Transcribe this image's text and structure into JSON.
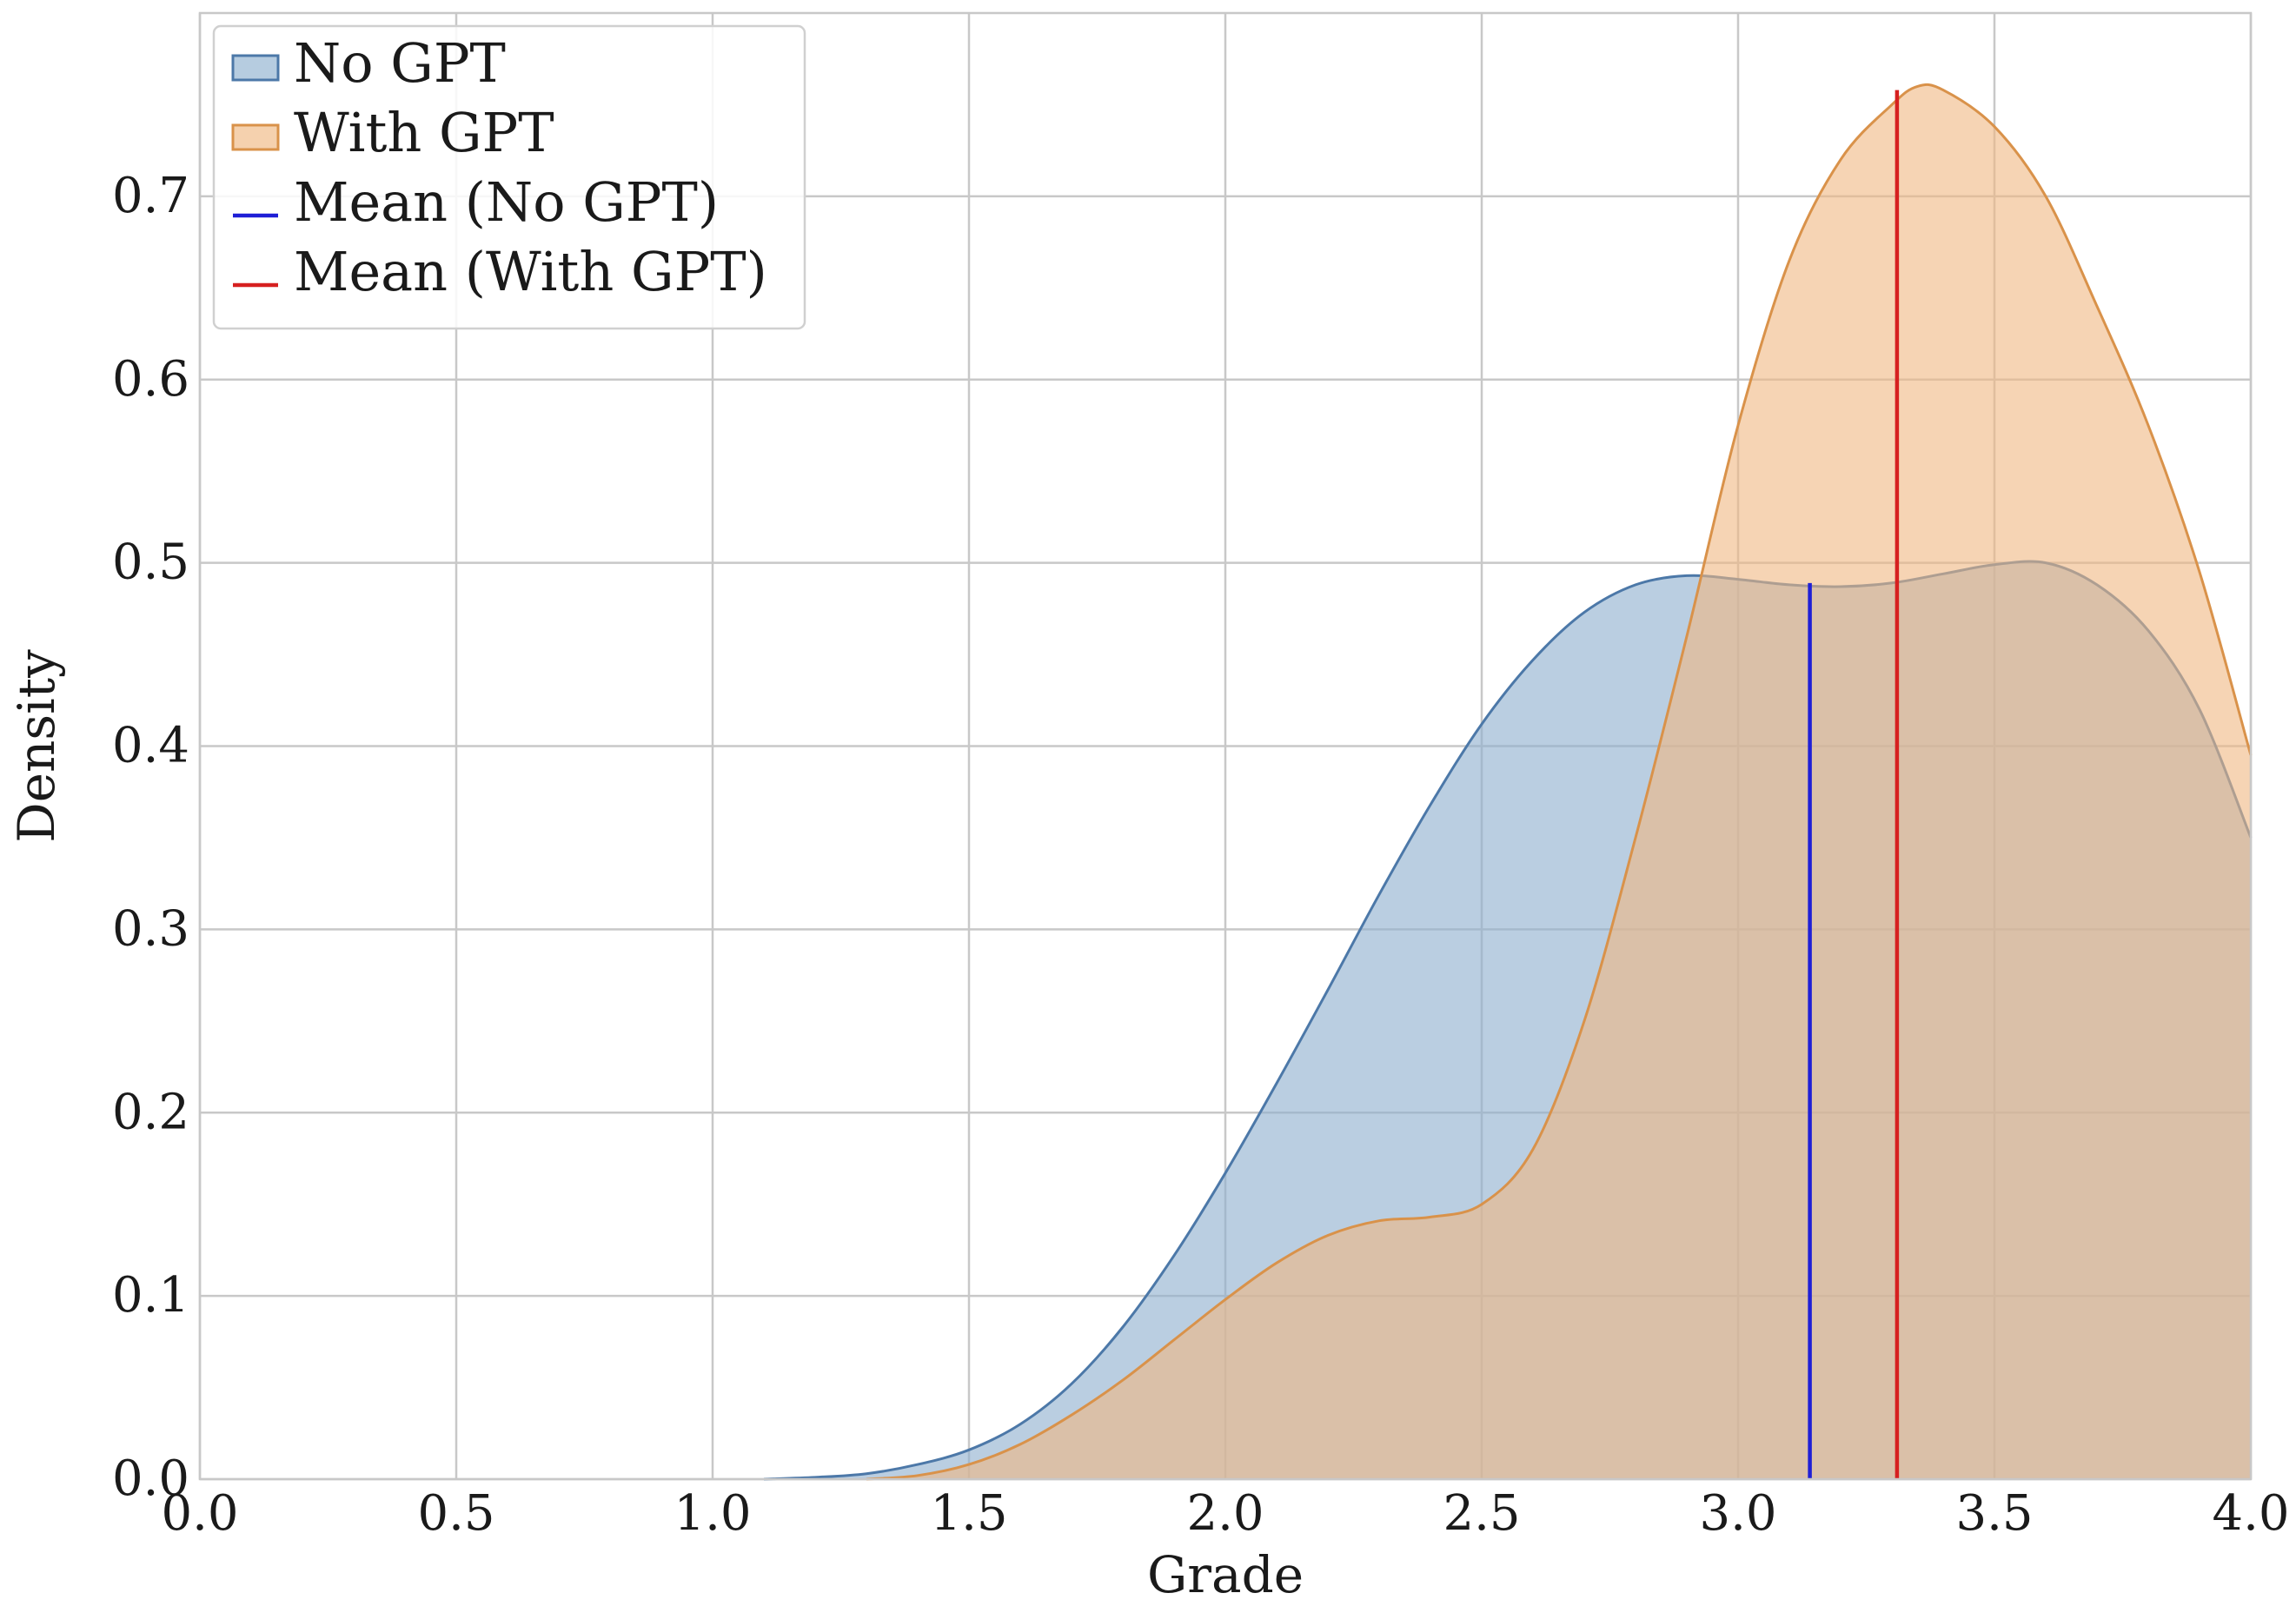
{
  "chart_data": {
    "type": "area",
    "title": "",
    "xlabel": "Grade",
    "ylabel": "Density",
    "xlim": [
      0.0,
      4.0
    ],
    "ylim": [
      0.0,
      0.8
    ],
    "xticks": [
      "0.0",
      "0.5",
      "1.0",
      "1.5",
      "2.0",
      "2.5",
      "3.0",
      "3.5",
      "4.0"
    ],
    "yticks": [
      "0.0",
      "0.1",
      "0.2",
      "0.3",
      "0.4",
      "0.5",
      "0.6",
      "0.7"
    ],
    "grid": true,
    "legend_position": "top-left",
    "series": [
      {
        "name": "No GPT",
        "kind": "density",
        "color": "#4c78a8",
        "fill": "#8fb0cf",
        "points": [
          [
            1.1,
            0.0
          ],
          [
            1.2,
            0.001
          ],
          [
            1.3,
            0.003
          ],
          [
            1.4,
            0.008
          ],
          [
            1.5,
            0.016
          ],
          [
            1.6,
            0.03
          ],
          [
            1.7,
            0.052
          ],
          [
            1.8,
            0.083
          ],
          [
            1.9,
            0.122
          ],
          [
            2.0,
            0.167
          ],
          [
            2.1,
            0.216
          ],
          [
            2.2,
            0.267
          ],
          [
            2.3,
            0.319
          ],
          [
            2.4,
            0.368
          ],
          [
            2.5,
            0.412
          ],
          [
            2.6,
            0.447
          ],
          [
            2.7,
            0.473
          ],
          [
            2.8,
            0.488
          ],
          [
            2.9,
            0.493
          ],
          [
            3.0,
            0.491
          ],
          [
            3.1,
            0.488
          ],
          [
            3.2,
            0.487
          ],
          [
            3.3,
            0.489
          ],
          [
            3.4,
            0.494
          ],
          [
            3.5,
            0.499
          ],
          [
            3.6,
            0.5
          ],
          [
            3.7,
            0.488
          ],
          [
            3.8,
            0.463
          ],
          [
            3.9,
            0.42
          ],
          [
            4.0,
            0.35
          ]
        ]
      },
      {
        "name": "With GPT",
        "kind": "density",
        "color": "#d9924a",
        "fill": "#f0b882",
        "points": [
          [
            1.3,
            0.0
          ],
          [
            1.4,
            0.002
          ],
          [
            1.5,
            0.008
          ],
          [
            1.6,
            0.019
          ],
          [
            1.7,
            0.035
          ],
          [
            1.8,
            0.054
          ],
          [
            1.9,
            0.076
          ],
          [
            2.0,
            0.098
          ],
          [
            2.1,
            0.118
          ],
          [
            2.2,
            0.133
          ],
          [
            2.3,
            0.141
          ],
          [
            2.4,
            0.143
          ],
          [
            2.5,
            0.15
          ],
          [
            2.6,
            0.18
          ],
          [
            2.7,
            0.25
          ],
          [
            2.8,
            0.35
          ],
          [
            2.9,
            0.46
          ],
          [
            3.0,
            0.575
          ],
          [
            3.1,
            0.665
          ],
          [
            3.2,
            0.72
          ],
          [
            3.3,
            0.75
          ],
          [
            3.35,
            0.76
          ],
          [
            3.4,
            0.758
          ],
          [
            3.5,
            0.738
          ],
          [
            3.6,
            0.7
          ],
          [
            3.7,
            0.64
          ],
          [
            3.8,
            0.575
          ],
          [
            3.9,
            0.495
          ],
          [
            4.0,
            0.395
          ]
        ]
      }
    ],
    "mean_lines": [
      {
        "name": "Mean (No GPT)",
        "x": 3.14,
        "y_top": 0.489,
        "color": "#1f1fd6"
      },
      {
        "name": "Mean (With GPT)",
        "x": 3.31,
        "y_top": 0.758,
        "color": "#d62020"
      }
    ]
  },
  "legend": {
    "items": [
      {
        "label": "No GPT",
        "kind": "patch",
        "color": "#4c78a8",
        "fill": "#8fb0cf"
      },
      {
        "label": "With GPT",
        "kind": "patch",
        "color": "#d9924a",
        "fill": "#f0b882"
      },
      {
        "label": "Mean (No GPT)",
        "kind": "line",
        "color": "#1f1fd6"
      },
      {
        "label": "Mean (With GPT)",
        "kind": "line",
        "color": "#d62020"
      }
    ]
  }
}
